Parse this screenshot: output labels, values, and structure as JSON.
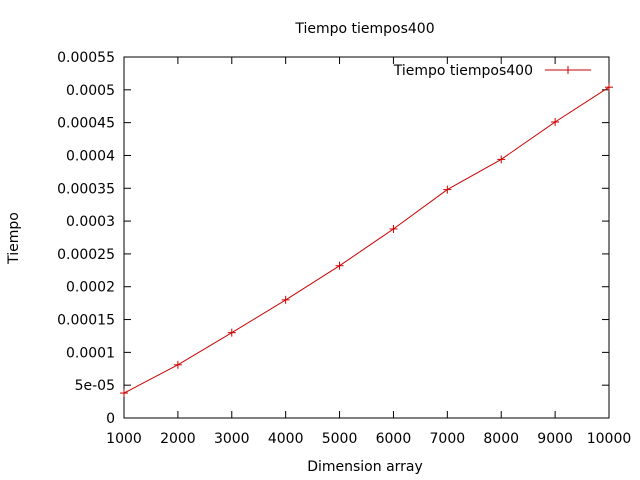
{
  "chart_data": {
    "type": "line",
    "title": "Tiempo tiempos400",
    "xlabel": "Dimension array",
    "ylabel": "Tiempo",
    "xlim": [
      1000,
      10000
    ],
    "ylim": [
      0,
      0.00055
    ],
    "x_ticks": [
      1000,
      2000,
      3000,
      4000,
      5000,
      6000,
      7000,
      8000,
      9000,
      10000
    ],
    "x_tick_labels": [
      "1000",
      "2000",
      "3000",
      "4000",
      "5000",
      "6000",
      "7000",
      "8000",
      "9000",
      "10000"
    ],
    "y_ticks": [
      0,
      5e-05,
      0.0001,
      0.00015,
      0.0002,
      0.00025,
      0.0003,
      0.00035,
      0.0004,
      0.00045,
      0.0005,
      0.00055
    ],
    "y_tick_labels": [
      "0",
      "5e-05",
      "0.0001",
      "0.00015",
      "0.0002",
      "0.00025",
      "0.0003",
      "0.00035",
      "0.0004",
      "0.00045",
      "0.0005",
      "0.00055"
    ],
    "grid": false,
    "legend_position": "top-right",
    "series": [
      {
        "name": "Tiempo tiempos400",
        "color": "#cc0000",
        "marker": "plus",
        "x": [
          1000,
          2000,
          3000,
          4000,
          5000,
          6000,
          7000,
          8000,
          9000,
          10000
        ],
        "y": [
          3.8e-05,
          8.1e-05,
          0.00013,
          0.00018,
          0.000232,
          0.000288,
          0.000348,
          0.000394,
          0.000451,
          0.000504
        ]
      }
    ]
  }
}
